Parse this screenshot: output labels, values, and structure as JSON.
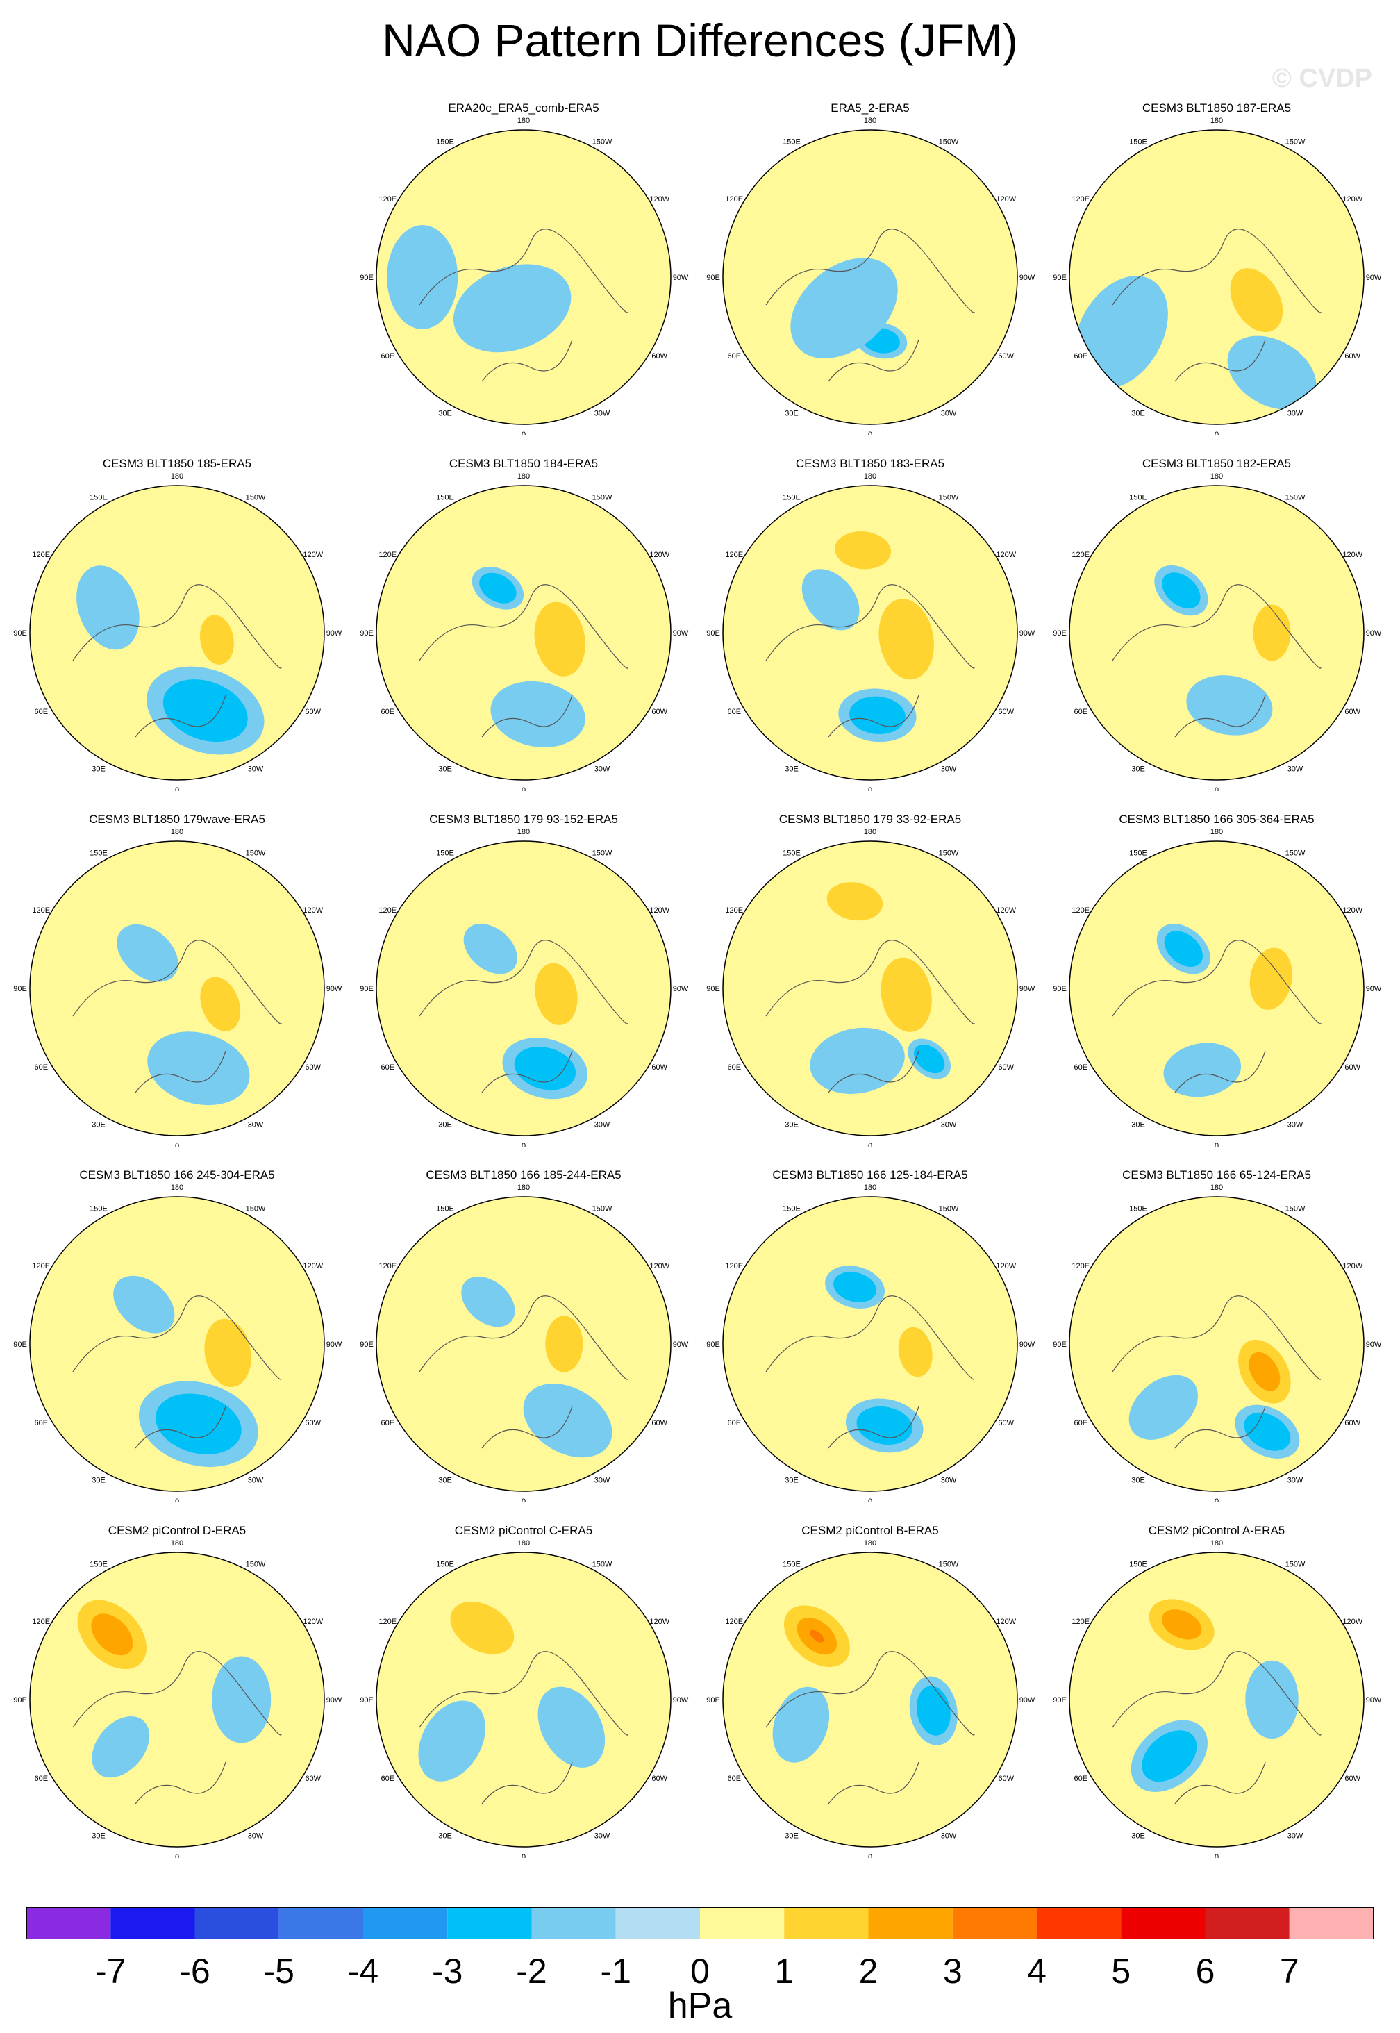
{
  "title": "NAO Pattern Differences (JFM)",
  "watermark": "© CVDP",
  "lon_labels": [
    "180",
    "150E",
    "120E",
    "90E",
    "60E",
    "30E",
    "0",
    "30W",
    "60W",
    "90W",
    "120W",
    "150W"
  ],
  "panels": [
    {
      "title": "ERA20c_ERA5_comb-ERA5",
      "blobs": [
        {
          "lat": 55,
          "lon": -150,
          "level": 1,
          "r": 60
        },
        {
          "lat": 45,
          "lon": -30,
          "level": 1,
          "r": 75
        },
        {
          "lat": 72,
          "lon": 20,
          "level": -1,
          "r": 70
        },
        {
          "lat": 35,
          "lon": 90,
          "level": -1,
          "r": 60
        }
      ]
    },
    {
      "title": "ERA5_2-ERA5",
      "blobs": [
        {
          "lat": 35,
          "lon": 150,
          "level": 1,
          "r": 60
        },
        {
          "lat": 55,
          "lon": -90,
          "level": 1,
          "r": 55
        },
        {
          "lat": 55,
          "lon": -10,
          "level": -2,
          "r": 30
        },
        {
          "lat": 68,
          "lon": 40,
          "level": -1,
          "r": 70
        }
      ]
    },
    {
      "title": "CESM3 BLT1850 187-ERA5",
      "blobs": [
        {
          "lat": 65,
          "lon": -60,
          "level": 2,
          "r": 55
        },
        {
          "lat": 55,
          "lon": -165,
          "level": 1,
          "r": 40
        },
        {
          "lat": 30,
          "lon": 60,
          "level": -1,
          "r": 70
        },
        {
          "lat": 30,
          "lon": -30,
          "level": -1,
          "r": 55
        }
      ]
    },
    {
      "title": "CESM3 BLT1850 185-ERA5",
      "blobs": [
        {
          "lat": 68,
          "lon": -80,
          "level": 2,
          "r": 40
        },
        {
          "lat": 50,
          "lon": -165,
          "level": 1,
          "r": 40
        },
        {
          "lat": 45,
          "lon": -20,
          "level": -2,
          "r": 70
        },
        {
          "lat": 50,
          "lon": 110,
          "level": -1,
          "r": 50
        }
      ]
    },
    {
      "title": "CESM3 BLT1850 184-ERA5",
      "blobs": [
        {
          "lat": 70,
          "lon": -80,
          "level": 2,
          "r": 60
        },
        {
          "lat": 55,
          "lon": 175,
          "level": 1,
          "r": 55
        },
        {
          "lat": 62,
          "lon": 150,
          "level": -2,
          "r": 32
        },
        {
          "lat": 45,
          "lon": -10,
          "level": -1,
          "r": 55
        }
      ]
    },
    {
      "title": "CESM3 BLT1850 183-ERA5",
      "blobs": [
        {
          "lat": 70,
          "lon": -80,
          "level": 2,
          "r": 65
        },
        {
          "lat": 45,
          "lon": 175,
          "level": 2,
          "r": 45
        },
        {
          "lat": 45,
          "lon": -5,
          "level": -2,
          "r": 45
        },
        {
          "lat": 62,
          "lon": 130,
          "level": -1,
          "r": 40
        }
      ]
    },
    {
      "title": "CESM3 BLT1850 182-ERA5",
      "blobs": [
        {
          "lat": 60,
          "lon": -90,
          "level": 2,
          "r": 45
        },
        {
          "lat": 45,
          "lon": 170,
          "level": 1,
          "r": 60
        },
        {
          "lat": 60,
          "lon": 140,
          "level": -2,
          "r": 35
        },
        {
          "lat": 50,
          "lon": -10,
          "level": -1,
          "r": 50
        }
      ]
    },
    {
      "title": "CESM3 BLT1850 179wave-ERA5",
      "blobs": [
        {
          "lat": 65,
          "lon": -70,
          "level": 2,
          "r": 45
        },
        {
          "lat": 45,
          "lon": 175,
          "level": 1,
          "r": 55
        },
        {
          "lat": 45,
          "lon": -15,
          "level": -1,
          "r": 60
        },
        {
          "lat": 65,
          "lon": 140,
          "level": -1,
          "r": 40
        }
      ]
    },
    {
      "title": "CESM3 BLT1850 179 93-152-ERA5",
      "blobs": [
        {
          "lat": 72,
          "lon": -80,
          "level": 2,
          "r": 50
        },
        {
          "lat": 48,
          "lon": 175,
          "level": 1,
          "r": 55
        },
        {
          "lat": 45,
          "lon": -15,
          "level": -2,
          "r": 50
        },
        {
          "lat": 62,
          "lon": 140,
          "level": -1,
          "r": 35
        }
      ]
    },
    {
      "title": "CESM3 BLT1850 179 33-92-ERA5",
      "blobs": [
        {
          "lat": 70,
          "lon": -80,
          "level": 2,
          "r": 60
        },
        {
          "lat": 42,
          "lon": 170,
          "level": 2,
          "r": 45
        },
        {
          "lat": 40,
          "lon": -40,
          "level": -2,
          "r": 28
        },
        {
          "lat": 50,
          "lon": 10,
          "level": -1,
          "r": 55
        }
      ]
    },
    {
      "title": "CESM3 BLT1850 166 305-364-ERA5",
      "blobs": [
        {
          "lat": 60,
          "lon": -100,
          "level": 2,
          "r": 50
        },
        {
          "lat": 48,
          "lon": 170,
          "level": 1,
          "r": 55
        },
        {
          "lat": 62,
          "lon": 140,
          "level": -2,
          "r": 35
        },
        {
          "lat": 45,
          "lon": 10,
          "level": -1,
          "r": 45
        }
      ]
    },
    {
      "title": "CESM3 BLT1850 166 245-304-ERA5",
      "blobs": [
        {
          "lat": 62,
          "lon": -80,
          "level": 2,
          "r": 55
        },
        {
          "lat": 48,
          "lon": 175,
          "level": 1,
          "r": 60
        },
        {
          "lat": 45,
          "lon": -15,
          "level": -2,
          "r": 70
        },
        {
          "lat": 62,
          "lon": 140,
          "level": -1,
          "r": 40
        }
      ]
    },
    {
      "title": "CESM3 BLT1850 166 185-244-ERA5",
      "blobs": [
        {
          "lat": 68,
          "lon": -90,
          "level": 2,
          "r": 45
        },
        {
          "lat": 45,
          "lon": 165,
          "level": 1,
          "r": 55
        },
        {
          "lat": 42,
          "lon": -30,
          "level": -1,
          "r": 55
        },
        {
          "lat": 60,
          "lon": 140,
          "level": -1,
          "r": 35
        }
      ]
    },
    {
      "title": "CESM3 BLT1850 166 125-184-ERA5",
      "blobs": [
        {
          "lat": 65,
          "lon": -80,
          "level": 2,
          "r": 40
        },
        {
          "lat": 42,
          "lon": 175,
          "level": 1,
          "r": 50
        },
        {
          "lat": 58,
          "lon": 165,
          "level": -2,
          "r": 35
        },
        {
          "lat": 45,
          "lon": -10,
          "level": -2,
          "r": 45
        }
      ]
    },
    {
      "title": "CESM3 BLT1850 166 65-124-ERA5",
      "blobs": [
        {
          "lat": 60,
          "lon": -60,
          "level": 3,
          "r": 55
        },
        {
          "lat": 45,
          "lon": 165,
          "level": 1,
          "r": 50
        },
        {
          "lat": 35,
          "lon": -30,
          "level": -2,
          "r": 40
        },
        {
          "lat": 45,
          "lon": 40,
          "level": -1,
          "r": 45
        }
      ]
    },
    {
      "title": "CESM2 piControl D-ERA5",
      "blobs": [
        {
          "lat": 40,
          "lon": 135,
          "level": 3,
          "r": 65
        },
        {
          "lat": 50,
          "lon": -20,
          "level": 1,
          "r": 50
        },
        {
          "lat": 55,
          "lon": -90,
          "level": -1,
          "r": 50
        },
        {
          "lat": 50,
          "lon": 50,
          "level": -1,
          "r": 40
        }
      ]
    },
    {
      "title": "CESM2 piControl C-ERA5",
      "blobs": [
        {
          "lat": 45,
          "lon": 150,
          "level": 2,
          "r": 55
        },
        {
          "lat": 45,
          "lon": -25,
          "level": 1,
          "r": 45
        },
        {
          "lat": 60,
          "lon": -60,
          "level": -1,
          "r": 50
        },
        {
          "lat": 45,
          "lon": 60,
          "level": -1,
          "r": 50
        }
      ]
    },
    {
      "title": "CESM2 piControl B-ERA5",
      "blobs": [
        {
          "lat": 45,
          "lon": 140,
          "level": 4,
          "r": 60
        },
        {
          "lat": 55,
          "lon": -20,
          "level": 1,
          "r": 50
        },
        {
          "lat": 55,
          "lon": -80,
          "level": -2,
          "r": 40
        },
        {
          "lat": 50,
          "lon": 70,
          "level": -1,
          "r": 45
        }
      ]
    },
    {
      "title": "CESM2 piControl A-ERA5",
      "blobs": [
        {
          "lat": 45,
          "lon": 155,
          "level": 3,
          "r": 55
        },
        {
          "lat": 45,
          "lon": -30,
          "level": 1,
          "r": 45
        },
        {
          "lat": 50,
          "lon": 40,
          "level": -2,
          "r": 50
        },
        {
          "lat": 60,
          "lon": -90,
          "level": -1,
          "r": 45
        }
      ]
    }
  ],
  "colorbar": {
    "colors": [
      "#8a2be2",
      "#1a1af0",
      "#2a4fe0",
      "#3b78e7",
      "#1f9af0",
      "#00c0f8",
      "#78ccf0",
      "#b3ddf2",
      "#fff99a",
      "#ffd330",
      "#ffa500",
      "#ff7a00",
      "#ff3800",
      "#ee0000",
      "#d21e1e",
      "#ffb0b0"
    ],
    "labels": [
      "-7",
      "-6",
      "-5",
      "-4",
      "-3",
      "-2",
      "-1",
      "0",
      "1",
      "2",
      "3",
      "4",
      "5",
      "6",
      "7"
    ],
    "units": "hPa"
  }
}
